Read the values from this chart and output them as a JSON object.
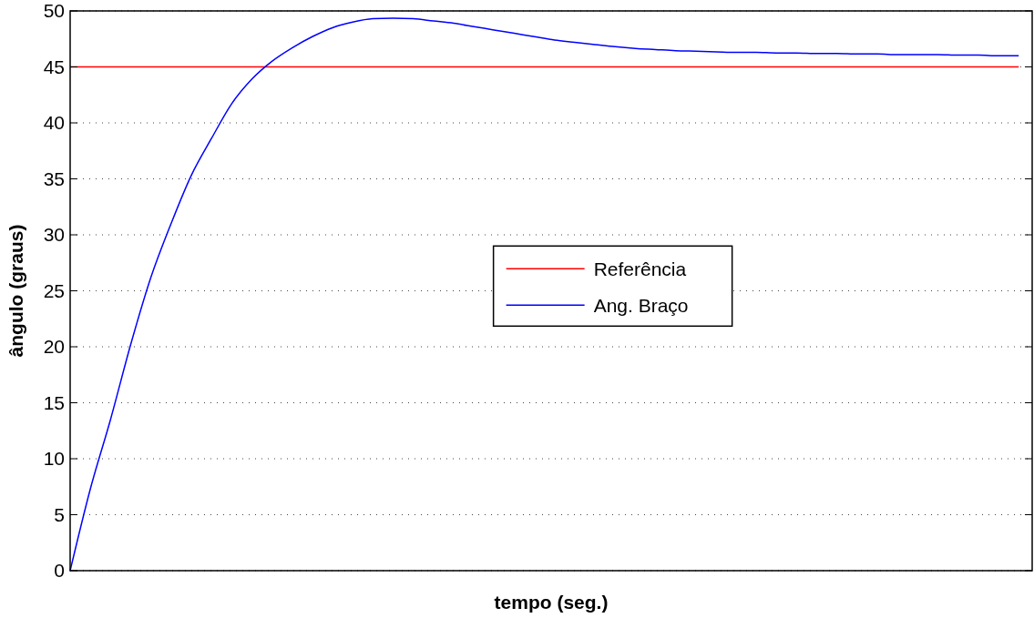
{
  "chart_data": {
    "type": "line",
    "xlabel": "tempo (seg.)",
    "ylabel": "ângulo (graus)",
    "categories": [
      null,
      null,
      null,
      null,
      null,
      null,
      null,
      null,
      null,
      null,
      null,
      null,
      null,
      null,
      null,
      null,
      null,
      null,
      null,
      null,
      null,
      null,
      null,
      null,
      null,
      null,
      null,
      null,
      null,
      null,
      null,
      null,
      null,
      null,
      null,
      null,
      null,
      null,
      null,
      null,
      null,
      null,
      null,
      null,
      null,
      null,
      null,
      null
    ],
    "series": [
      {
        "name": "Referência",
        "color": "#ff0000",
        "values": [
          45,
          45,
          45,
          45,
          45,
          45,
          45,
          45,
          45,
          45,
          45,
          45,
          45,
          45,
          45,
          45,
          45,
          45,
          45,
          45,
          45,
          45,
          45,
          45,
          45,
          45,
          45,
          45,
          45,
          45,
          45,
          45,
          45,
          45,
          45,
          45,
          45,
          45,
          45,
          45,
          45,
          45,
          45,
          45,
          45,
          45,
          45,
          45
        ]
      },
      {
        "name": "Ang. Braço",
        "color": "#0000ff",
        "values": [
          0,
          7.3,
          13.5,
          20.2,
          26.2,
          31,
          35.3,
          38.6,
          41.7,
          43.9,
          45.5,
          46.7,
          47.7,
          48.5,
          49,
          49.3,
          49.35,
          49.3,
          49.1,
          48.9,
          48.6,
          48.3,
          48,
          47.7,
          47.4,
          47.2,
          47,
          46.8,
          46.65,
          46.55,
          46.45,
          46.4,
          46.35,
          46.3,
          46.3,
          46.25,
          46.25,
          46.2,
          46.2,
          46.15,
          46.15,
          46.1,
          46.1,
          46.1,
          46.05,
          46.05,
          46,
          46
        ]
      }
    ],
    "ylim": [
      0,
      50
    ],
    "yticks": [
      0,
      5,
      10,
      15,
      20,
      25,
      30,
      35,
      40,
      45,
      50
    ],
    "grid": "y",
    "legend": "center",
    "tick_labels": "y",
    "line_style": "solid",
    "marker": "none"
  }
}
